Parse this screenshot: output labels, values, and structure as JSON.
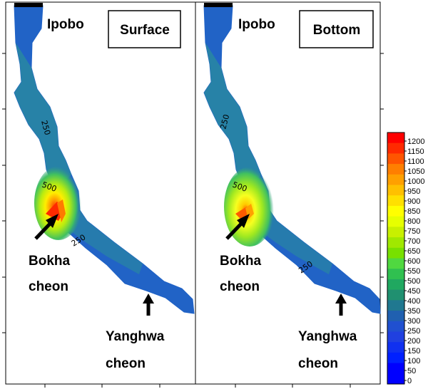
{
  "panels": [
    {
      "title": "Surface",
      "labels": {
        "top": "Ipobo",
        "tributary1": [
          "Bokha",
          "cheon"
        ],
        "tributary2": [
          "Yanghwa",
          "cheon"
        ]
      },
      "contours": [
        "250",
        "500",
        "250"
      ]
    },
    {
      "title": "Bottom",
      "labels": {
        "top": "Ipobo",
        "tributary1": [
          "Bokha",
          "cheon"
        ],
        "tributary2": [
          "Yanghwa",
          "cheon"
        ]
      },
      "contours": [
        "250",
        "500",
        "250"
      ]
    }
  ],
  "colorbar": {
    "ticks": [
      "1200",
      "1150",
      "1100",
      "1050",
      "1000",
      "950",
      "900",
      "850",
      "800",
      "750",
      "700",
      "650",
      "600",
      "550",
      "500",
      "450",
      "400",
      "350",
      "300",
      "250",
      "200",
      "150",
      "100",
      "50",
      "0"
    ],
    "colors": [
      "#ff0000",
      "#ff2a00",
      "#ff5500",
      "#ff7f00",
      "#ffa000",
      "#ffc000",
      "#ffe000",
      "#ffff00",
      "#e6ff00",
      "#c8f000",
      "#a0e800",
      "#78e000",
      "#50d840",
      "#30c050",
      "#20a860",
      "#209070",
      "#207890",
      "#2060b0",
      "#2050d0",
      "#2040e0",
      "#1030f0",
      "#0020ff",
      "#0000ff",
      "#0000ff"
    ]
  }
}
